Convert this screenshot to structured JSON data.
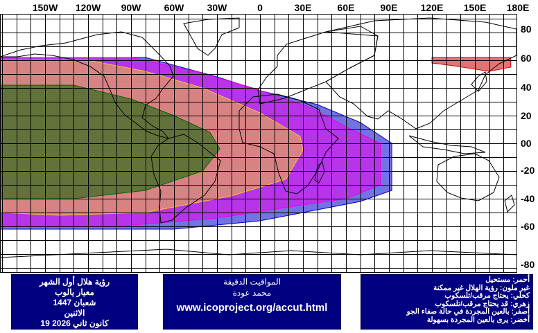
{
  "longitude_labels": [
    "150W",
    "120W",
    "90W",
    "60W",
    "30W",
    "0",
    "30E",
    "60E",
    "90E",
    "120E",
    "150E",
    "180E"
  ],
  "latitude_labels": [
    "80",
    "60",
    "40",
    "20",
    "00",
    "-20",
    "-40",
    "-60",
    "-80"
  ],
  "visibility_zones": {
    "colors": {
      "red": "#cc0000",
      "magenta": "#ee00ee",
      "blue": "#0000cc",
      "yellow": "#f4c430",
      "green": "#006600",
      "grid": "#000000",
      "coast": "#000000"
    }
  },
  "info_left": {
    "lines": [
      "رؤية هلال أول الشهر",
      "معيار يالوب",
      "شعبان 1447",
      "الاثنين",
      "كانون ثاني 2026 19"
    ]
  },
  "info_middle": {
    "title": "المواقيت الدقيقة",
    "author": "محمد عودة",
    "url": "www.icoproject.org/accut.html"
  },
  "legend": {
    "lines": [
      "أحمر: مستحيل",
      "غير ملون: رؤية الهلال غير ممكنة",
      "كحلي: يحتاج مرقب/تلسكوب",
      "زهري: قد يحتاج مرقب/تلسكوب",
      "أصفر: بالعين المجردة في حالة صفاء الجو",
      "أخضر: يرى بالعين المجردة بسهولة"
    ]
  }
}
